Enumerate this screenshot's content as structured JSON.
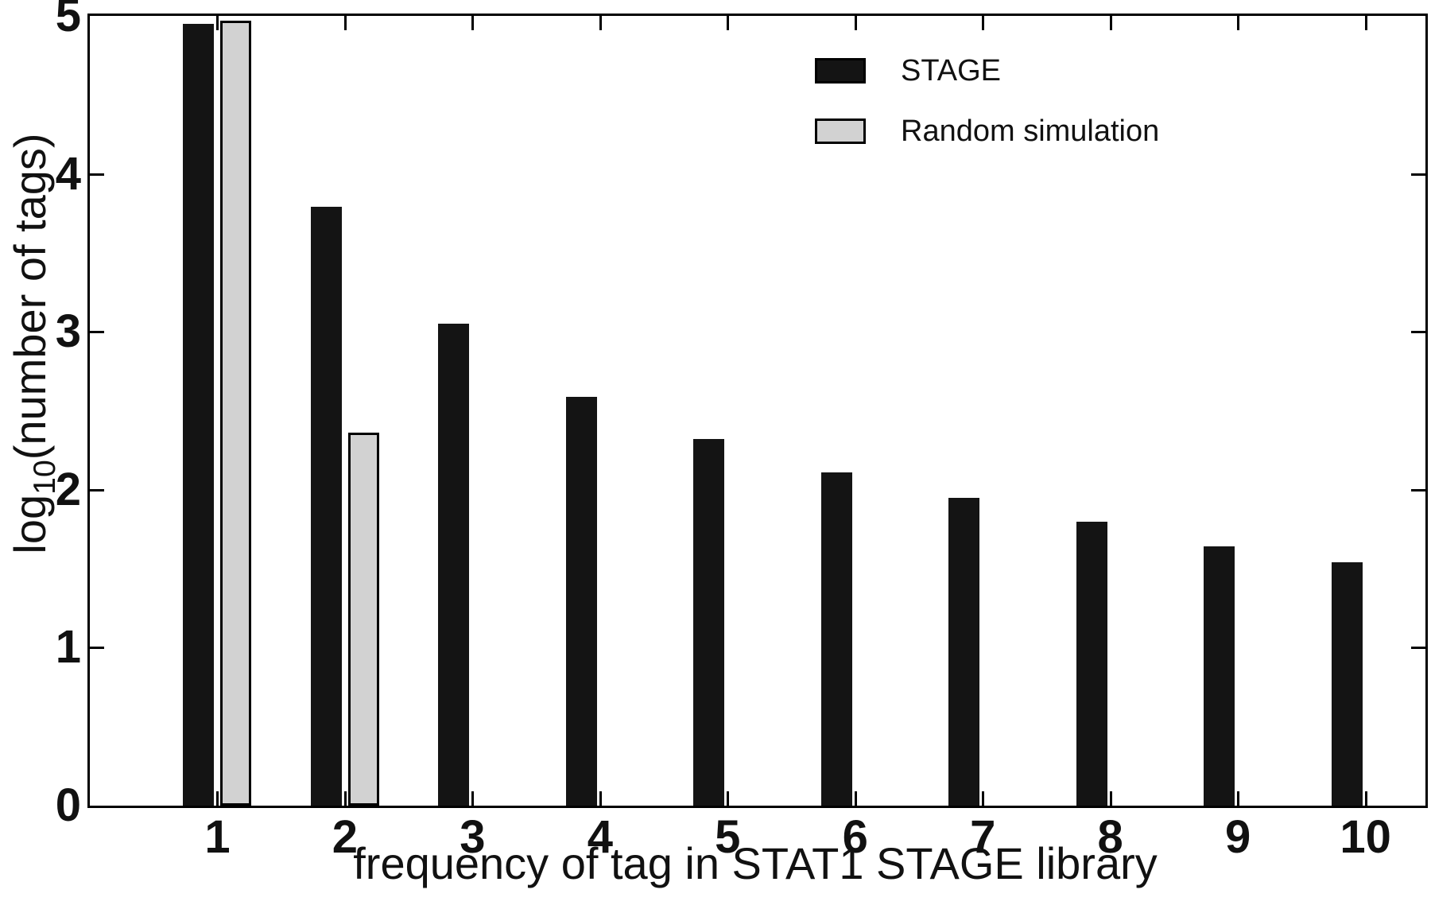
{
  "figure": {
    "background": "#ffffff",
    "bar_black": "#141414",
    "bar_gray": "#d2d2d2",
    "axis_color": "#000000"
  },
  "chart_data": {
    "type": "bar",
    "title": "",
    "xlabel": "frequency of tag in STAT1 STAGE library",
    "ylabel": "log10(number of tags)",
    "ylabel_parts": {
      "prefix": "log",
      "subscript": "10",
      "suffix": "(number of tags)"
    },
    "categories": [
      1,
      2,
      3,
      4,
      5,
      6,
      7,
      8,
      9,
      10
    ],
    "series": [
      {
        "name": "STAGE",
        "color": "#141414",
        "values": [
          4.95,
          3.79,
          3.05,
          2.59,
          2.32,
          2.11,
          1.95,
          1.8,
          1.64,
          1.54
        ]
      },
      {
        "name": "Random simulation",
        "color": "#d2d2d2",
        "values": [
          4.97,
          2.36,
          null,
          null,
          null,
          null,
          null,
          null,
          null,
          null
        ]
      }
    ],
    "ylim": [
      0,
      5
    ],
    "yticks": [
      0,
      1,
      2,
      3,
      4,
      5
    ],
    "xlim": [
      0,
      10.47
    ],
    "grid": false,
    "legend_position": "top-right-inside"
  },
  "legend": {
    "items": [
      {
        "label": "STAGE",
        "swatch": "#141414"
      },
      {
        "label": "Random simulation",
        "swatch": "#d2d2d2"
      }
    ]
  }
}
